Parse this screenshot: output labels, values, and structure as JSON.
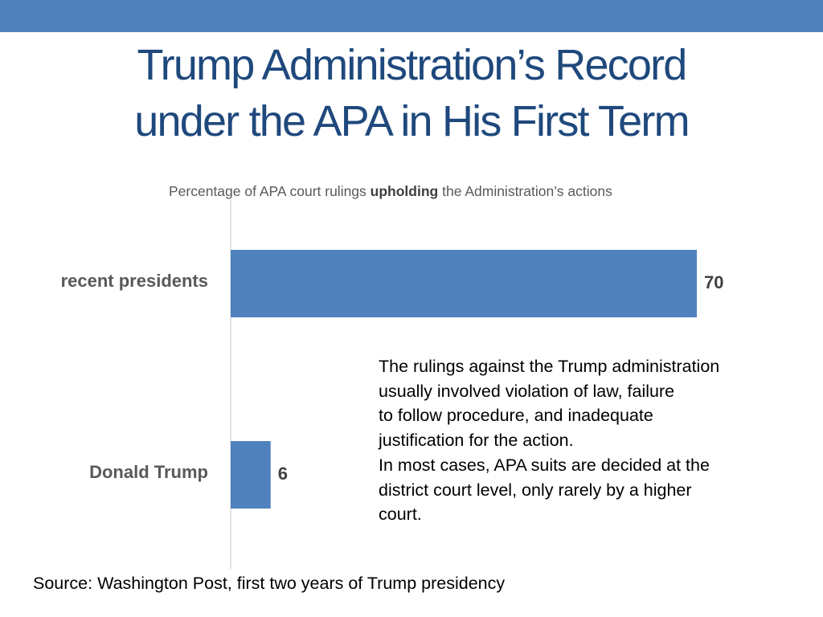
{
  "title": {
    "line1": "Trump Administration’s Record",
    "line2": "under the APA in His First Term"
  },
  "subtitle": {
    "prefix": "Percentage of APA court rulings",
    "emphasis": "upholding",
    "suffix": "the Administration’s actions"
  },
  "chart_data": {
    "type": "bar",
    "orientation": "horizontal",
    "categories": [
      "recent presidents",
      "Donald Trump"
    ],
    "values": [
      70,
      6
    ],
    "data_labels": [
      "70",
      "6"
    ],
    "xlim": [
      0,
      70
    ],
    "grid": false,
    "legend": "none",
    "bar_color": "#4f81bd"
  },
  "note": {
    "lines": [
      "The rulings against the Trump administration",
      "usually involved violation of law, failure",
      "to follow procedure, and inadequate",
      "justification for the action.",
      "In most cases, APA suits are decided at the",
      "district court level, only rarely by a higher",
      "court."
    ]
  },
  "source": "Source: Washington Post, first two years of Trump presidency",
  "colors": {
    "accent": "#4f81bd",
    "title": "#1f497d"
  }
}
